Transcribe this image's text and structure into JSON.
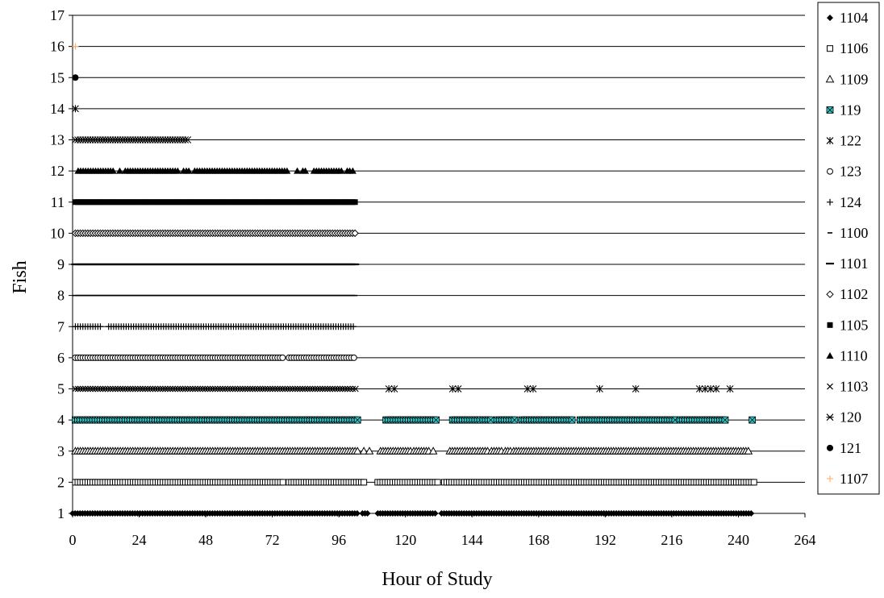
{
  "chart_data": {
    "type": "scatter",
    "title": "",
    "xlabel": "Hour of Study",
    "ylabel": "Fish",
    "xlim": [
      0,
      264
    ],
    "ylim": [
      1,
      17
    ],
    "x_ticks": [
      0,
      24,
      48,
      72,
      96,
      120,
      144,
      168,
      192,
      216,
      240,
      264
    ],
    "y_ticks": [
      1,
      2,
      3,
      4,
      5,
      6,
      7,
      8,
      9,
      10,
      11,
      12,
      13,
      14,
      15,
      16,
      17
    ],
    "grid": "horizontal",
    "legend_position": "right",
    "series": [
      {
        "name": "1104",
        "y": 1,
        "marker": "diamond-filled",
        "color": "#000000",
        "ranges": [
          [
            0,
            103
          ],
          [
            104.5,
            106.5
          ],
          [
            110,
            131
          ],
          [
            133,
            245
          ]
        ],
        "points": []
      },
      {
        "name": "1106",
        "y": 2,
        "marker": "square-open",
        "color": "#000000",
        "ranges": [
          [
            1,
            19
          ],
          [
            20,
            76
          ],
          [
            78,
            105
          ],
          [
            110,
            132
          ],
          [
            134,
            246
          ]
        ],
        "points": []
      },
      {
        "name": "1109",
        "y": 3,
        "marker": "triangle-open",
        "color": "#000000",
        "ranges": [
          [
            1,
            103
          ],
          [
            111,
            122
          ],
          [
            123,
            129
          ],
          [
            136,
            145
          ],
          [
            146,
            150
          ],
          [
            151,
            155
          ],
          [
            156,
            158
          ],
          [
            159,
            244
          ]
        ],
        "points": [
          105,
          107,
          130
        ]
      },
      {
        "name": "119",
        "y": 4,
        "marker": "square-x-teal",
        "color": "#33cccc",
        "ranges": [
          [
            1,
            103
          ],
          [
            113,
            131
          ],
          [
            137,
            147
          ],
          [
            148,
            151
          ],
          [
            153,
            160
          ],
          [
            162,
            180
          ],
          [
            183,
            218
          ],
          [
            219,
            236
          ]
        ],
        "points": [
          245
        ]
      },
      {
        "name": "122",
        "y": 5,
        "marker": "asterisk",
        "color": "#000000",
        "ranges": [],
        "points": [
          114,
          116,
          137,
          139,
          164,
          166,
          190,
          203,
          226,
          228,
          230,
          232,
          237
        ]
      },
      {
        "name": "1103",
        "y": 5,
        "marker": "x",
        "color": "#000000",
        "ranges": [
          [
            1,
            100
          ]
        ],
        "points": [
          101,
          102
        ]
      },
      {
        "name": "123",
        "y": 6,
        "marker": "circle-open",
        "color": "#000000",
        "ranges": [
          [
            1,
            76
          ],
          [
            78,
            102
          ]
        ],
        "points": []
      },
      {
        "name": "124",
        "y": 7,
        "marker": "plus",
        "color": "#000000",
        "ranges": [
          [
            1,
            10
          ],
          [
            13,
            102
          ]
        ],
        "points": []
      },
      {
        "name": "1100",
        "y": 8,
        "marker": "dash-short",
        "color": "#000000",
        "ranges": [
          [
            1,
            102
          ]
        ],
        "points": []
      },
      {
        "name": "1101",
        "y": 9,
        "marker": "dash-long",
        "color": "#000000",
        "ranges": [
          [
            1,
            102
          ]
        ],
        "points": []
      },
      {
        "name": "1102",
        "y": 10,
        "marker": "diamond-open",
        "color": "#000000",
        "ranges": [
          [
            1,
            102
          ]
        ],
        "points": []
      },
      {
        "name": "1105",
        "y": 11,
        "marker": "square-filled",
        "color": "#000000",
        "ranges": [
          [
            1,
            102
          ]
        ],
        "points": []
      },
      {
        "name": "1110",
        "y": 12,
        "marker": "triangle-filled",
        "color": "#000000",
        "ranges": [
          [
            2,
            15
          ],
          [
            19,
            38
          ],
          [
            41,
            42
          ],
          [
            44,
            78
          ],
          [
            83,
            84
          ],
          [
            87,
            97
          ],
          [
            99,
            100
          ]
        ],
        "points": [
          17,
          40,
          81,
          101
        ]
      },
      {
        "name": "120",
        "y": 13,
        "marker": "asterisk-x",
        "color": "#000000",
        "ranges": [
          [
            1,
            42
          ]
        ],
        "points": []
      },
      {
        "name": "122",
        "y": 14,
        "marker": "asterisk",
        "color": "#000000",
        "ranges": [],
        "points": [
          1
        ]
      },
      {
        "name": "121",
        "y": 15,
        "marker": "circle-filled",
        "color": "#000000",
        "ranges": [],
        "points": [
          1
        ]
      },
      {
        "name": "1107",
        "y": 16,
        "marker": "plus",
        "color": "#ffb366",
        "ranges": [],
        "points": [
          1
        ]
      }
    ],
    "legend": [
      {
        "label": "1104",
        "marker": "diamond-filled",
        "color": "#000000"
      },
      {
        "label": "1106",
        "marker": "square-open",
        "color": "#000000"
      },
      {
        "label": "1109",
        "marker": "triangle-open",
        "color": "#000000"
      },
      {
        "label": "119",
        "marker": "square-x-teal",
        "color": "#33cccc"
      },
      {
        "label": "122",
        "marker": "asterisk",
        "color": "#000000"
      },
      {
        "label": "123",
        "marker": "circle-open",
        "color": "#000000"
      },
      {
        "label": "124",
        "marker": "plus",
        "color": "#000000"
      },
      {
        "label": "1100",
        "marker": "dash-short",
        "color": "#000000"
      },
      {
        "label": "1101",
        "marker": "dash-long",
        "color": "#000000"
      },
      {
        "label": "1102",
        "marker": "diamond-open",
        "color": "#000000"
      },
      {
        "label": "1105",
        "marker": "square-filled",
        "color": "#000000"
      },
      {
        "label": "1110",
        "marker": "triangle-filled",
        "color": "#000000"
      },
      {
        "label": "1103",
        "marker": "x",
        "color": "#000000"
      },
      {
        "label": "120",
        "marker": "asterisk-x",
        "color": "#000000"
      },
      {
        "label": "121",
        "marker": "circle-filled",
        "color": "#000000"
      },
      {
        "label": "1107",
        "marker": "plus",
        "color": "#ffb366"
      }
    ]
  }
}
